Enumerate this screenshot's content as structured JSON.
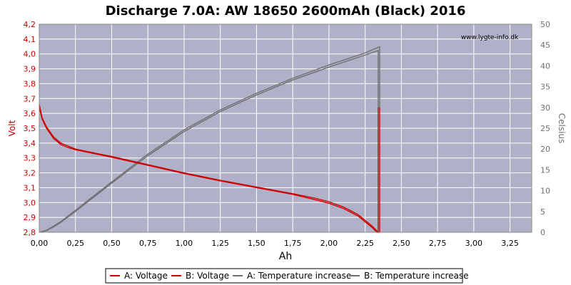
{
  "chart_data": {
    "type": "line",
    "title": "Discharge 7.0A: AW 18650 2600mAh (Black) 2016",
    "watermark": "www.lygte-info.dk",
    "xlabel": "Ah",
    "ylabel_left": "Volt",
    "ylabel_right": "Celsius",
    "xlim": [
      0,
      3.4
    ],
    "ylim_left": [
      2.8,
      4.2
    ],
    "ylim_right": [
      0,
      50
    ],
    "x_ticks": [
      "0,00",
      "0,25",
      "0,50",
      "0,75",
      "1,00",
      "1,25",
      "1,50",
      "1,75",
      "2,00",
      "2,25",
      "2,50",
      "2,75",
      "3,00",
      "3,25"
    ],
    "y_left_ticks": [
      "2,8",
      "2,9",
      "3,0",
      "3,1",
      "3,2",
      "3,3",
      "3,4",
      "3,5",
      "3,6",
      "3,7",
      "3,8",
      "3,9",
      "4,0",
      "4,1",
      "4,2"
    ],
    "y_right_ticks": [
      "0",
      "5",
      "10",
      "15",
      "20",
      "25",
      "30",
      "35",
      "40",
      "45",
      "50"
    ],
    "grid": true,
    "legend_position": "bottom",
    "colors": {
      "background": "#ffffff",
      "plot_background": "#b0b0c8",
      "grid": "#ffffff",
      "voltage": "#cc0000",
      "temperature": "#707070",
      "left_axis": "#cc0000",
      "right_axis": "#707070"
    },
    "series": [
      {
        "name": "A: Voltage",
        "axis": "left",
        "x": [
          0,
          0.02,
          0.05,
          0.1,
          0.15,
          0.2,
          0.25,
          0.4,
          0.5,
          0.75,
          1.0,
          1.25,
          1.5,
          1.75,
          1.9,
          2.0,
          2.1,
          2.2,
          2.25,
          2.3,
          2.32,
          2.335,
          2.34
        ],
        "y": [
          3.64,
          3.56,
          3.5,
          3.43,
          3.39,
          3.37,
          3.355,
          3.325,
          3.305,
          3.25,
          3.195,
          3.145,
          3.1,
          3.055,
          3.02,
          2.995,
          2.96,
          2.91,
          2.87,
          2.83,
          2.81,
          2.8,
          2.8
        ]
      },
      {
        "name": "B: Voltage",
        "axis": "left",
        "x": [
          0,
          0.02,
          0.05,
          0.1,
          0.15,
          0.2,
          0.25,
          0.4,
          0.5,
          0.75,
          1.0,
          1.25,
          1.5,
          1.75,
          1.9,
          2.0,
          2.1,
          2.2,
          2.25,
          2.3,
          2.32,
          2.34,
          2.35
        ],
        "y": [
          3.66,
          3.57,
          3.51,
          3.44,
          3.4,
          3.38,
          3.36,
          3.33,
          3.31,
          3.255,
          3.2,
          3.15,
          3.105,
          3.06,
          3.03,
          3.005,
          2.97,
          2.92,
          2.88,
          2.84,
          2.82,
          2.8,
          2.8
        ]
      },
      {
        "name": "A: Temperature increase",
        "axis": "right",
        "x": [
          0,
          0.05,
          0.1,
          0.15,
          0.25,
          0.5,
          0.75,
          1.0,
          1.25,
          1.5,
          1.75,
          2.0,
          2.25,
          2.34,
          2.34
        ],
        "y": [
          0,
          0.4,
          1.3,
          2.4,
          5.0,
          11.8,
          18.4,
          24.2,
          29.0,
          33.0,
          36.6,
          39.7,
          42.6,
          43.7,
          0
        ]
      },
      {
        "name": "B: Temperature increase",
        "axis": "right",
        "x": [
          0,
          0.05,
          0.1,
          0.15,
          0.25,
          0.5,
          0.75,
          1.0,
          1.25,
          1.5,
          1.75,
          2.0,
          2.25,
          2.35,
          2.35
        ],
        "y": [
          0,
          0.5,
          1.5,
          2.6,
          5.3,
          12.1,
          18.8,
          24.6,
          29.4,
          33.4,
          37.0,
          40.2,
          43.1,
          44.6,
          0
        ]
      }
    ],
    "markers": [
      {
        "name": "A: Voltage",
        "x": 2.34,
        "y_from": 2.8,
        "y_to": 3.64
      },
      {
        "name": "B: Voltage",
        "x": 2.35,
        "y_from": 2.8,
        "y_to": 3.64
      }
    ]
  }
}
